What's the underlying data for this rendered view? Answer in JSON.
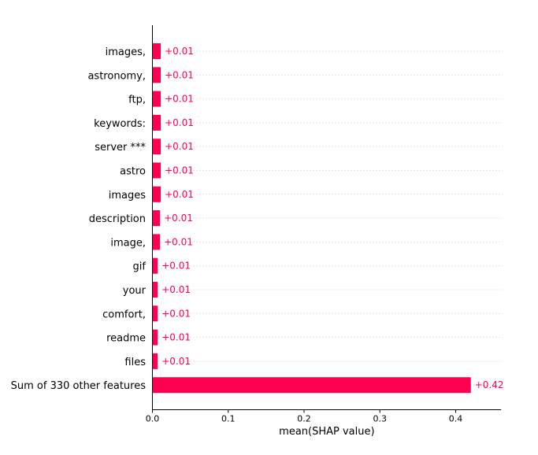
{
  "chart_data": {
    "type": "bar",
    "orientation": "horizontal",
    "categories": [
      "images,",
      "astronomy,",
      "ftp,",
      "keywords:",
      "server ***",
      "astro",
      "images",
      "description",
      "image,",
      "gif",
      "your",
      "comfort,",
      "readme",
      "files",
      "Sum of 330 other features"
    ],
    "values": [
      0.011,
      0.011,
      0.011,
      0.011,
      0.011,
      0.011,
      0.011,
      0.01,
      0.01,
      0.007,
      0.007,
      0.007,
      0.007,
      0.007,
      0.42
    ],
    "value_labels": [
      "+0.01",
      "+0.01",
      "+0.01",
      "+0.01",
      "+0.01",
      "+0.01",
      "+0.01",
      "+0.01",
      "+0.01",
      "+0.01",
      "+0.01",
      "+0.01",
      "+0.01",
      "+0.01",
      "+0.42"
    ],
    "xlabel": "mean(SHAP value)",
    "ylabel": "",
    "title": "",
    "xlim": [
      0,
      0.46
    ],
    "xticks": [
      0.0,
      0.1,
      0.2,
      0.3,
      0.4
    ],
    "xtick_labels": [
      "0.0",
      "0.1",
      "0.2",
      "0.3",
      "0.4"
    ],
    "bar_color": "#ff0051",
    "label_color": "#ff0051",
    "grid": "dotted horizontal row guides",
    "legend": "none"
  }
}
